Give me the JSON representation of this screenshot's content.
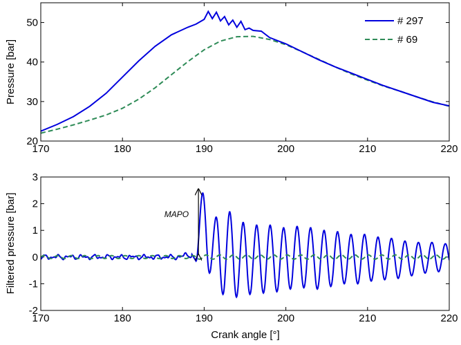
{
  "chart_data": [
    {
      "type": "line",
      "ylabel": "Pressure [bar]",
      "xlim": [
        170,
        220
      ],
      "ylim": [
        20,
        55
      ],
      "xticks": [
        170,
        180,
        190,
        200,
        210,
        220
      ],
      "yticks": [
        20,
        30,
        40,
        50
      ],
      "legend_position": "top-right",
      "series": [
        {
          "name": "# 297",
          "color": "#0000dd",
          "style": "solid",
          "x": [
            170,
            172,
            174,
            176,
            178,
            180,
            182,
            184,
            186,
            188,
            189,
            190,
            190.5,
            191,
            191.5,
            192,
            192.5,
            193,
            193.5,
            194,
            194.5,
            195,
            195.5,
            196,
            197,
            198,
            199,
            200,
            202,
            204,
            206,
            208,
            210,
            212,
            214,
            216,
            218,
            220
          ],
          "y": [
            22.5,
            24.2,
            26.2,
            28.8,
            32.1,
            36.2,
            40.3,
            44.0,
            46.9,
            48.8,
            49.6,
            50.8,
            52.8,
            51.0,
            52.6,
            50.4,
            51.5,
            49.4,
            50.6,
            48.8,
            50.3,
            48.2,
            48.6,
            48.0,
            47.8,
            46.2,
            45.4,
            44.6,
            42.6,
            40.6,
            38.8,
            37.2,
            35.6,
            34.0,
            32.6,
            31.2,
            29.8,
            28.9
          ]
        },
        {
          "name": "# 69",
          "color": "#2e8b57",
          "style": "dashed",
          "x": [
            170,
            172,
            174,
            176,
            178,
            180,
            182,
            184,
            186,
            188,
            190,
            192,
            194,
            196,
            198,
            200,
            202,
            204,
            206,
            208,
            210,
            212,
            214,
            216,
            218,
            220
          ],
          "y": [
            22.0,
            23.0,
            24.1,
            25.3,
            26.6,
            28.3,
            30.6,
            33.5,
            36.8,
            40.1,
            43.1,
            45.3,
            46.4,
            46.5,
            45.7,
            44.4,
            42.6,
            40.7,
            38.8,
            37.0,
            35.4,
            33.9,
            32.6,
            31.2,
            29.9,
            28.8
          ]
        }
      ]
    },
    {
      "type": "line",
      "xlabel": "Crank angle [°]",
      "ylabel": "Filtered pressure [bar]",
      "xlim": [
        170,
        220
      ],
      "ylim": [
        -2,
        3
      ],
      "xticks": [
        170,
        180,
        190,
        200,
        210,
        220
      ],
      "yticks": [
        -2,
        -1,
        0,
        1,
        2,
        3
      ],
      "annotation": {
        "text": "MAPO",
        "x": 189.3,
        "y_from": 0.1,
        "y_to": 2.55
      },
      "series": [
        {
          "name": "",
          "color": "#0000dd",
          "style": "solid",
          "noise_until": 188.5,
          "onset": 189.0,
          "period": 1.65,
          "peak_amplitudes": [
            2.4,
            1.5,
            1.7,
            1.3,
            1.2,
            1.2,
            1.1,
            1.15,
            1.1,
            1.0,
            0.95,
            0.85,
            0.85,
            0.75,
            0.7,
            0.6,
            0.55,
            0.55,
            0.5
          ],
          "trough_amplitudes": [
            -0.6,
            -1.4,
            -1.5,
            -1.4,
            -1.35,
            -1.3,
            -1.2,
            -1.15,
            -1.2,
            -1.1,
            -1.0,
            -1.0,
            -0.9,
            -0.85,
            -0.8,
            -0.7,
            -0.6,
            -0.55,
            -0.5,
            -0.3
          ]
        },
        {
          "name": "",
          "color": "#2e8b57",
          "style": "dashed",
          "amplitude": 0.08
        }
      ]
    }
  ],
  "legend": {
    "items": [
      {
        "label": "# 297",
        "color": "#0000dd",
        "style": "solid"
      },
      {
        "label": "# 69",
        "color": "#2e8b57",
        "style": "dashed"
      }
    ]
  }
}
